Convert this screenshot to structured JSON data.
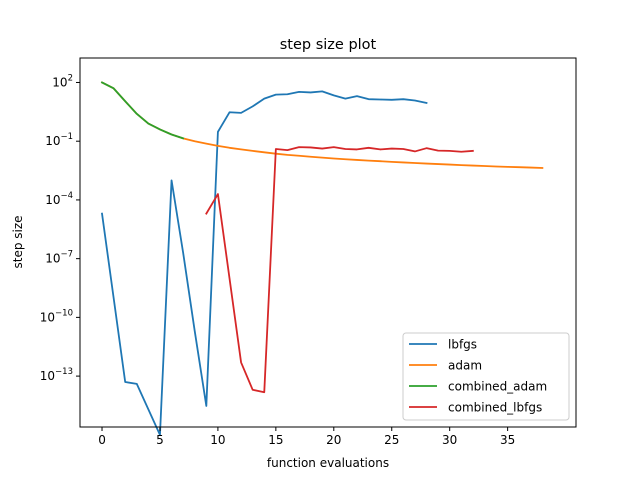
{
  "chart_data": {
    "type": "line",
    "title": "step size plot",
    "xlabel": "function evaluations",
    "ylabel": "step size",
    "xlim": [
      -1.9,
      40.9
    ],
    "ylim_log10": [
      -15.6,
      3.25
    ],
    "yscale": "log",
    "x_ticks": [
      0,
      5,
      10,
      15,
      20,
      25,
      30,
      35
    ],
    "y_ticks": [
      {
        "exp": 2,
        "label": "10",
        "sup": "2"
      },
      {
        "exp": -1,
        "label": "10",
        "sup": "−1"
      },
      {
        "exp": -4,
        "label": "10",
        "sup": "−4"
      },
      {
        "exp": -7,
        "label": "10",
        "sup": "−7"
      },
      {
        "exp": -10,
        "label": "10",
        "sup": "−10"
      },
      {
        "exp": -13,
        "label": "10",
        "sup": "−13"
      }
    ],
    "grid": false,
    "legend_position": "lower-right",
    "series": [
      {
        "name": "lbfgs",
        "color": "#1f77b4",
        "x": [
          0,
          1,
          2,
          3,
          4,
          5,
          6,
          7,
          8,
          9,
          10,
          11,
          12,
          13,
          14,
          15,
          16,
          17,
          18,
          19,
          20,
          21,
          22,
          23,
          24,
          25,
          26,
          27,
          28
        ],
        "y": [
          2e-05,
          1e-09,
          5e-14,
          4e-14,
          2e-15,
          1e-16,
          0.001,
          2e-07,
          2e-11,
          3e-15,
          0.3,
          3,
          2.8,
          6,
          15,
          24,
          25,
          33,
          31,
          35,
          22,
          15,
          20,
          14,
          13.5,
          13,
          14,
          12,
          9
        ]
      },
      {
        "name": "adam",
        "color": "#ff7f0e",
        "x": [
          0,
          1,
          2,
          3,
          4,
          5,
          6,
          7,
          8,
          9,
          10,
          11,
          12,
          13,
          14,
          15,
          16,
          17,
          18,
          19,
          20,
          21,
          22,
          23,
          24,
          25,
          26,
          27,
          28,
          29,
          30,
          31,
          32,
          33,
          34,
          35,
          36,
          37,
          38
        ],
        "y": [
          100,
          50,
          11,
          2.5,
          0.8,
          0.4,
          0.22,
          0.14,
          0.1,
          0.075,
          0.058,
          0.046,
          0.038,
          0.032,
          0.027,
          0.023,
          0.02,
          0.018,
          0.016,
          0.0145,
          0.013,
          0.012,
          0.011,
          0.0102,
          0.0095,
          0.0088,
          0.0082,
          0.0077,
          0.0072,
          0.0068,
          0.0064,
          0.006,
          0.0057,
          0.0054,
          0.0051,
          0.0049,
          0.0047,
          0.0045,
          0.0043
        ]
      },
      {
        "name": "combined_adam",
        "color": "#2ca02c",
        "x": [
          0,
          1,
          2,
          3,
          4,
          5,
          6,
          7
        ],
        "y": [
          100,
          50,
          11,
          2.5,
          0.8,
          0.4,
          0.22,
          0.14
        ]
      },
      {
        "name": "combined_lbfgs",
        "color": "#d62728",
        "x": [
          9,
          10,
          11,
          12,
          13,
          14,
          15,
          16,
          17,
          18,
          19,
          20,
          21,
          22,
          23,
          24,
          25,
          26,
          27,
          28,
          29,
          30,
          31,
          32
        ],
        "y": [
          2e-05,
          0.0002,
          1e-08,
          5e-13,
          2e-14,
          1.5e-14,
          0.04,
          0.035,
          0.05,
          0.048,
          0.042,
          0.05,
          0.04,
          0.038,
          0.046,
          0.038,
          0.042,
          0.04,
          0.03,
          0.044,
          0.033,
          0.032,
          0.029,
          0.032
        ]
      }
    ]
  }
}
